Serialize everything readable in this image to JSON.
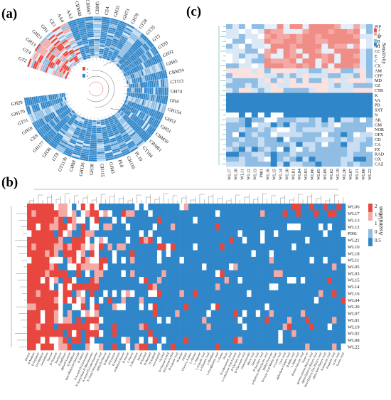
{
  "chart_data": [
    {
      "panel": "(a)",
      "type": "heatmap",
      "layout": "circular",
      "title": "",
      "row_labels": [
        "GT2",
        "GT4",
        "GH13",
        "GH23",
        "GH1",
        "CE1",
        "AA4",
        "AA3",
        "CBM48",
        "CBM67",
        "CBM5",
        "CE4",
        "GH35",
        "GH73",
        "GH78",
        "GT28",
        "GT35",
        "GT5",
        "GT83",
        "GH32",
        "GH65",
        "CBM34",
        "GT113",
        "GH74",
        "GH4",
        "GH154",
        "GH53",
        "GH51",
        "CBM50",
        "CBM61",
        "GT104",
        "PL10",
        "GH116",
        "PL8",
        "GH43",
        "GH115",
        "GH30",
        "GH126",
        "GH88",
        "GT113b",
        "GT8",
        "GH36",
        "GH177",
        "CE9",
        "GH59",
        "GT51",
        "GH170",
        "GH29"
      ],
      "legend_values": [
        "4",
        "2",
        "0"
      ],
      "legend_colors": [
        "#e8473f",
        "#ffffff",
        "#2f86c9"
      ]
    },
    {
      "panel": "(c)",
      "type": "heatmap",
      "title": "",
      "legend_title": "Sensitivity",
      "legend_values": [
        "4",
        "3",
        "2",
        "1",
        "0"
      ],
      "legend_colors": [
        "#e8473f",
        "#f4a9a4",
        "#ffffff",
        "#8fbde3",
        "#2f86c9"
      ],
      "rows": [
        "PIP",
        "P",
        "CIP",
        "TE",
        "MI",
        "CC",
        "E",
        "C",
        "CX",
        "AM",
        "CFP",
        "MD",
        "CZ",
        "CTR",
        "K",
        "VA",
        "PB",
        "SXT",
        "N",
        "AK",
        "GM",
        "NOR",
        "OFX",
        "CD",
        "CA",
        "FZ",
        "RAD",
        "OX",
        "CAZ"
      ],
      "columns": [
        "WL17",
        "WL10",
        "WL11",
        "WL12",
        "WL13",
        "P001",
        "WL16",
        "WL15",
        "WL14",
        "WL18",
        "WL01",
        "WL04",
        "WL03",
        "WL06",
        "WL05",
        "WL09",
        "WL02",
        "WL19",
        "WL20",
        "WL07",
        "WL21",
        "WL08",
        "WL22"
      ]
    },
    {
      "panel": "(b)",
      "type": "heatmap",
      "title": "",
      "legend_title": "Assimilation",
      "legend_values": [
        "2",
        "1.5",
        "1",
        "0",
        "0.5"
      ],
      "legend_colors": [
        "#e8473f",
        "#f4a9a4",
        "#ffffff",
        "#8fbde3",
        "#2f86c9"
      ],
      "rows": [
        "WL06",
        "WL17",
        "WL13",
        "WL12",
        "P001",
        "WL21",
        "WL10",
        "WL18",
        "WL11",
        "WL05",
        "WL03",
        "WL15",
        "WL14",
        "WL16",
        "WL04",
        "WL20",
        "WL07",
        "WL01",
        "WL19",
        "WL02",
        "WL08",
        "WL22"
      ],
      "columns": [
        "Dextrin",
        "D-Maltose",
        "D-Trehalose",
        "D-Cellobiose",
        "Gentiobiose",
        "Sucrose",
        "D-Turanose",
        "Stachyose",
        "D-Raffinose",
        "alpha-D-Lactose",
        "D-Melibiose",
        "beta-Methyl-D-Glucoside",
        "D-Salicin",
        "N-Acetyl-D-Glucosamine",
        "N-Acetyl-beta-D-Mannosamine",
        "N-Acetyl-D-Galactosamine",
        "N-Acetyl Neuraminic Acid",
        "alpha-D-Glucose",
        "D-Mannose",
        "D-Fructose",
        "D-Galactose",
        "3-Methyl Glucose",
        "D-Fucose",
        "L-Fucose",
        "L-Rhamnose",
        "Inosine",
        "D-Sorbitol",
        "D-Mannitol",
        "D-Arabitol",
        "myo-Inositol",
        "Glycerol",
        "D-Glucose-6-PO4",
        "D-Fructose-6-PO4",
        "D-Aspartic Acid",
        "D-Serine",
        "Gelatin",
        "Glycyl-L-Proline",
        "L-Alanine",
        "L-Arginine",
        "L-Aspartic Acid",
        "L-Glutamic Acid",
        "L-Histidine",
        "L-Pyroglutamic Acid",
        "L-Serine",
        "Pectin",
        "D-Galacturonic Acid",
        "L-Galactonic Acid Lactone",
        "D-Gluconic Acid",
        "D-Glucuronic Acid",
        "Glucuronamide",
        "Mucic Acid",
        "Quinic Acid",
        "D-Saccharic Acid",
        "p-Hydroxy-Phenylacetic Acid",
        "Methyl Pyruvate",
        "D-Lactic Acid Methyl Ester",
        "L-Lactic Acid",
        "Citric Acid",
        "alpha-Keto-Glutaric Acid",
        "D-Malic Acid",
        "L-Malic Acid",
        "Bromo-Succinic Acid",
        "Tween 40",
        "gamma-Amino-Butryric Acid",
        "alpha-Hydroxy-Butyric Acid",
        "beta-Hydroxy-D,L-Butyric Acid",
        "alpha-Keto-Butyric Acid",
        "Acetoacetic Acid",
        "Propionic Acid",
        "Acetic Acid",
        "Formic Acid"
      ]
    }
  ]
}
